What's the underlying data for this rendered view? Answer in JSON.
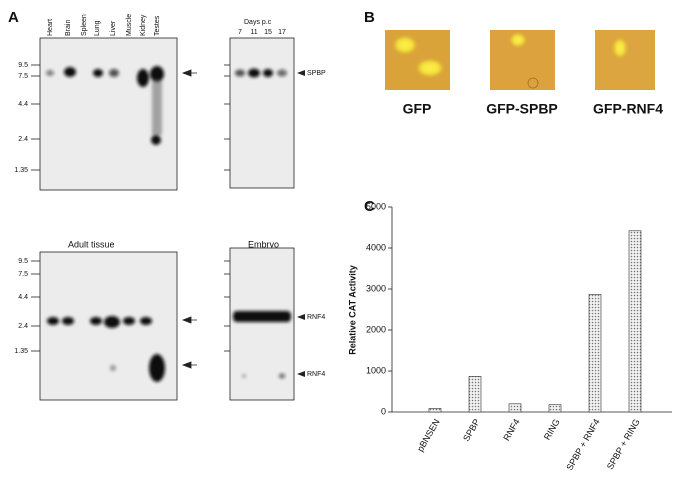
{
  "panel_a": {
    "label": "A",
    "tissues": [
      "Heart",
      "Brain",
      "Spleen",
      "Lung",
      "Liver",
      "Muscle",
      "Kidney",
      "Testes"
    ],
    "days_title": "Days p.c",
    "days": [
      7,
      11,
      15,
      17
    ],
    "markers_top": [
      9.5,
      7.5,
      4.4,
      2.4,
      1.35
    ],
    "markers_bottom": [
      9.5,
      7.5,
      4.4,
      2.4,
      1.35
    ],
    "spbp": "SPBP",
    "adult": "Adult tissue",
    "embryo": "Embryo",
    "rnf4_upper": "RNF4",
    "rnf4_lower": "RNF4"
  },
  "panel_b": {
    "label": "B",
    "images": [
      "GFP",
      "GFP-SPBP",
      "GFP-RNF4"
    ]
  },
  "panel_c_label": "C",
  "chart_data": {
    "type": "bar",
    "y_label": "Relative CAT Activity",
    "categories": [
      "pBNSEN",
      "SPBP",
      "RNF4",
      "RING",
      "SPBP + RNF4",
      "SPBP + RING"
    ],
    "values": [
      90,
      870,
      200,
      180,
      2870,
      4420
    ],
    "color": "#777777",
    "ylim": [
      0,
      5000
    ],
    "yticks": [
      0,
      1000,
      2000,
      3000,
      4000,
      5000
    ]
  }
}
